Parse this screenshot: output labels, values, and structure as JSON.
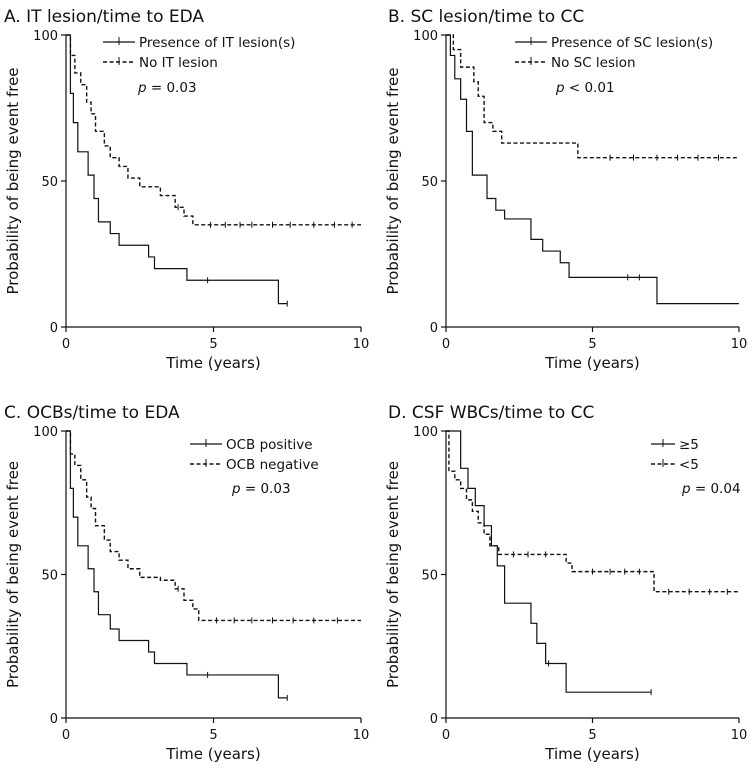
{
  "chart_data": [
    {
      "type": "line",
      "subtype": "kaplan-meier",
      "panel_letter": "A.",
      "title": "IT lesion/time to EDA",
      "xlabel": "Time (years)",
      "ylabel": "Probability of being event free",
      "xlim": [
        0,
        10
      ],
      "ylim": [
        0,
        100
      ],
      "xticks": [
        "0",
        "5",
        "10"
      ],
      "yticks": [
        "0",
        "50",
        "100"
      ],
      "legend_position": "top-right",
      "p_label": "p",
      "p_value": " = 0.03",
      "series": [
        {
          "name": "Presence of IT lesion(s)",
          "style": "solid",
          "x": [
            0,
            0.15,
            0.25,
            0.4,
            0.75,
            0.95,
            1.1,
            1.25,
            1.5,
            1.8,
            2.1,
            2.8,
            3.0,
            4.1,
            7.2,
            7.5
          ],
          "y": [
            100,
            80,
            70,
            60,
            52,
            44,
            36,
            36,
            32,
            28,
            28,
            24,
            20,
            16,
            8,
            8
          ],
          "censored": [
            [
              4.8,
              16
            ],
            [
              7.5,
              8
            ]
          ]
        },
        {
          "name": "No IT lesion",
          "style": "dashed",
          "x": [
            0,
            0.15,
            0.3,
            0.5,
            0.7,
            0.85,
            1.0,
            1.3,
            1.5,
            1.8,
            2.1,
            2.5,
            3.2,
            3.7,
            4.0,
            4.3,
            10
          ],
          "y": [
            100,
            93,
            87,
            83,
            77,
            73,
            67,
            62,
            58,
            55,
            51,
            48,
            45,
            41,
            38,
            35,
            35
          ],
          "censored": [
            [
              3.8,
              41
            ],
            [
              4.9,
              35
            ],
            [
              5.4,
              35
            ],
            [
              5.9,
              35
            ],
            [
              6.3,
              35
            ],
            [
              7.0,
              35
            ],
            [
              7.6,
              35
            ],
            [
              8.4,
              35
            ],
            [
              9.1,
              35
            ],
            [
              9.7,
              35
            ]
          ]
        }
      ]
    },
    {
      "type": "line",
      "subtype": "kaplan-meier",
      "panel_letter": "B.",
      "title": "SC lesion/time to CC",
      "xlabel": "Time (years)",
      "ylabel": "Probability of being event free",
      "xlim": [
        0,
        10
      ],
      "ylim": [
        0,
        100
      ],
      "xticks": [
        "0",
        "5",
        "10"
      ],
      "yticks": [
        "0",
        "50",
        "100"
      ],
      "legend_position": "top-right",
      "p_label": "p",
      "p_value": " < 0.01",
      "series": [
        {
          "name": "Presence of SC lesion(s)",
          "style": "solid",
          "x": [
            0,
            0.15,
            0.3,
            0.5,
            0.7,
            0.9,
            1.4,
            1.7,
            2.0,
            2.9,
            3.3,
            3.9,
            4.2,
            7.2,
            10
          ],
          "y": [
            100,
            93,
            85,
            78,
            67,
            52,
            44,
            40,
            37,
            30,
            26,
            22,
            17,
            8,
            8
          ],
          "censored": [
            [
              6.2,
              17
            ],
            [
              6.6,
              17
            ]
          ]
        },
        {
          "name": "No SC lesion",
          "style": "dashed",
          "x": [
            0,
            0.25,
            0.5,
            0.95,
            1.1,
            1.3,
            1.6,
            1.9,
            4.5,
            10
          ],
          "y": [
            100,
            95,
            89,
            84,
            79,
            70,
            67,
            63,
            58,
            58
          ],
          "censored": [
            [
              5.6,
              58
            ],
            [
              6.4,
              58
            ],
            [
              7.2,
              58
            ],
            [
              7.9,
              58
            ],
            [
              8.6,
              58
            ],
            [
              9.3,
              58
            ]
          ]
        }
      ]
    },
    {
      "type": "line",
      "subtype": "kaplan-meier",
      "panel_letter": "C.",
      "title": "OCBs/time to EDA",
      "xlabel": "Time (years)",
      "ylabel": "Probability of being event free",
      "xlim": [
        0,
        10
      ],
      "ylim": [
        0,
        100
      ],
      "xticks": [
        "0",
        "5",
        "10"
      ],
      "yticks": [
        "0",
        "50",
        "100"
      ],
      "legend_position": "top-right",
      "p_label": "p",
      "p_value": " = 0.03",
      "series": [
        {
          "name": "OCB positive",
          "style": "solid",
          "x": [
            0,
            0.15,
            0.25,
            0.4,
            0.75,
            0.95,
            1.1,
            1.25,
            1.5,
            1.8,
            2.1,
            2.8,
            3.0,
            4.1,
            7.2,
            7.5
          ],
          "y": [
            100,
            80,
            70,
            60,
            52,
            44,
            36,
            36,
            31,
            27,
            27,
            23,
            19,
            15,
            7,
            7
          ],
          "censored": [
            [
              4.8,
              15
            ],
            [
              7.5,
              7
            ]
          ]
        },
        {
          "name": "OCB negative",
          "style": "dashed",
          "x": [
            0,
            0.15,
            0.3,
            0.5,
            0.7,
            0.85,
            1.0,
            1.3,
            1.5,
            1.8,
            2.1,
            2.5,
            3.2,
            3.7,
            4.0,
            4.3,
            4.5,
            10
          ],
          "y": [
            100,
            92,
            88,
            83,
            77,
            73,
            67,
            62,
            58,
            55,
            52,
            49,
            48,
            45,
            41,
            38,
            34,
            34
          ],
          "censored": [
            [
              3.8,
              45
            ],
            [
              5.1,
              34
            ],
            [
              5.7,
              34
            ],
            [
              6.3,
              34
            ],
            [
              7.0,
              34
            ],
            [
              7.7,
              34
            ],
            [
              8.4,
              34
            ],
            [
              9.2,
              34
            ]
          ]
        }
      ]
    },
    {
      "type": "line",
      "subtype": "kaplan-meier",
      "panel_letter": "D.",
      "title": "CSF WBCs/time to CC",
      "xlabel": "Time (years)",
      "ylabel": "Probability of being event free",
      "xlim": [
        0,
        10
      ],
      "ylim": [
        0,
        100
      ],
      "xticks": [
        "0",
        "5",
        "10"
      ],
      "yticks": [
        "0",
        "50",
        "100"
      ],
      "legend_position": "top-right",
      "p_label": "p",
      "p_value": " = 0.04",
      "series": [
        {
          "name": "≥5",
          "style": "solid",
          "x": [
            0,
            0.5,
            0.75,
            1.0,
            1.3,
            1.55,
            1.75,
            2.0,
            2.6,
            2.9,
            3.1,
            3.4,
            4.1,
            7.0
          ],
          "y": [
            100,
            87,
            80,
            74,
            67,
            60,
            53,
            40,
            40,
            33,
            26,
            19,
            9,
            9
          ],
          "censored": [
            [
              3.5,
              19
            ],
            [
              7.0,
              9
            ]
          ]
        },
        {
          "name": "<5",
          "style": "dashed",
          "x": [
            0,
            0.1,
            0.3,
            0.5,
            0.7,
            0.9,
            1.1,
            1.3,
            1.5,
            1.8,
            4.1,
            4.3,
            7.1,
            10
          ],
          "y": [
            100,
            86,
            83,
            80,
            76,
            72,
            68,
            64,
            60,
            57,
            54,
            51,
            44,
            44
          ],
          "censored": [
            [
              2.3,
              57
            ],
            [
              2.8,
              57
            ],
            [
              3.4,
              57
            ],
            [
              5.0,
              51
            ],
            [
              5.6,
              51
            ],
            [
              6.1,
              51
            ],
            [
              6.6,
              51
            ],
            [
              7.6,
              44
            ],
            [
              8.3,
              44
            ],
            [
              9.0,
              44
            ],
            [
              9.6,
              44
            ]
          ]
        }
      ]
    }
  ]
}
